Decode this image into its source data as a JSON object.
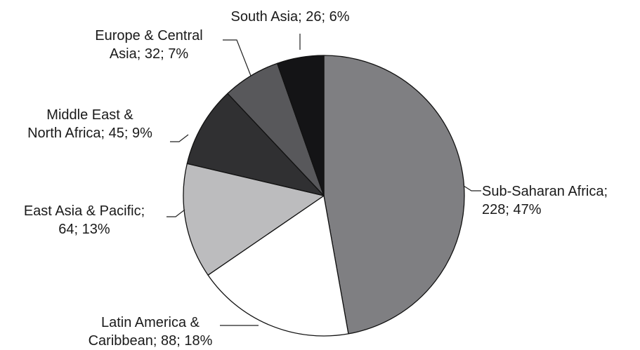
{
  "chart_data": {
    "type": "pie",
    "slices": [
      {
        "name": "Sub-Saharan Africa",
        "value": 228,
        "percent": 47,
        "color": "#7f7f82",
        "label_lines": [
          "Sub-Saharan Africa;",
          "228; 47%"
        ]
      },
      {
        "name": "Latin America & Caribbean",
        "value": 88,
        "percent": 18,
        "color": "#ffffff",
        "label_lines": [
          "Latin America &",
          "Caribbean; 88; 18%"
        ]
      },
      {
        "name": "East Asia & Pacific",
        "value": 64,
        "percent": 13,
        "color": "#bcbcbe",
        "label_lines": [
          "East Asia & Pacific;",
          "64; 13%"
        ]
      },
      {
        "name": "Middle East & North Africa",
        "value": 45,
        "percent": 9,
        "color": "#303032",
        "label_lines": [
          "Middle East &",
          "North Africa; 45; 9%"
        ]
      },
      {
        "name": "Europe & Central Asia",
        "value": 32,
        "percent": 7,
        "color": "#58585b",
        "label_lines": [
          "Europe & Central",
          "Asia; 32; 7%"
        ]
      },
      {
        "name": "South Asia",
        "value": 26,
        "percent": 6,
        "color": "#141416",
        "label_lines": [
          "South Asia; 26; 6%"
        ]
      }
    ],
    "start": "top",
    "direction": "clockwise"
  }
}
